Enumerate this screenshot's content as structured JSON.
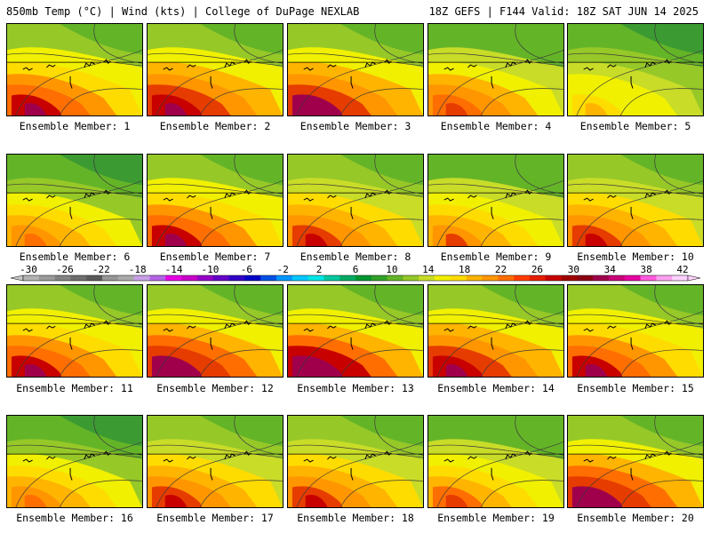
{
  "header": {
    "left": "850mb Temp (°C) | Wind (kts) | College of DuPage NEXLAB",
    "right": "18Z GEFS | F144 Valid: 18Z SAT JUN 14 2025"
  },
  "members": [
    {
      "label": "Ensemble Member: 1",
      "warmth": 0.8
    },
    {
      "label": "Ensemble Member: 2",
      "warmth": 0.82
    },
    {
      "label": "Ensemble Member: 3",
      "warmth": 0.85
    },
    {
      "label": "Ensemble Member: 4",
      "warmth": 0.65
    },
    {
      "label": "Ensemble Member: 5",
      "warmth": 0.45
    },
    {
      "label": "Ensemble Member: 6",
      "warmth": 0.55
    },
    {
      "label": "Ensemble Member: 7",
      "warmth": 0.78
    },
    {
      "label": "Ensemble Member: 8",
      "warmth": 0.7
    },
    {
      "label": "Ensemble Member: 9",
      "warmth": 0.6
    },
    {
      "label": "Ensemble Member: 10",
      "warmth": 0.72
    },
    {
      "label": "Ensemble Member: 11",
      "warmth": 0.78
    },
    {
      "label": "Ensemble Member: 12",
      "warmth": 0.88
    },
    {
      "label": "Ensemble Member: 13",
      "warmth": 0.92
    },
    {
      "label": "Ensemble Member: 14",
      "warmth": 0.84
    },
    {
      "label": "Ensemble Member: 15",
      "warmth": 0.8
    },
    {
      "label": "Ensemble Member: 16",
      "warmth": 0.55
    },
    {
      "label": "Ensemble Member: 17",
      "warmth": 0.7
    },
    {
      "label": "Ensemble Member: 18",
      "warmth": 0.72
    },
    {
      "label": "Ensemble Member: 19",
      "warmth": 0.62
    },
    {
      "label": "Ensemble Member: 20",
      "warmth": 0.9
    }
  ],
  "colorbar": {
    "ticks": [
      "-30",
      "-26",
      "-22",
      "-18",
      "-14",
      "-10",
      "-6",
      "-2",
      "2",
      "6",
      "10",
      "14",
      "18",
      "22",
      "26",
      "30",
      "34",
      "38",
      "42"
    ],
    "colors": [
      "#b4b4b4",
      "#9b9b9b",
      "#828282",
      "#6e6e6e",
      "#5a5a5a",
      "#969696",
      "#aaaaaa",
      "#c8a0e6",
      "#b464e6",
      "#e600e6",
      "#c800c8",
      "#9600c8",
      "#6400c8",
      "#3200c8",
      "#0000c8",
      "#0050e6",
      "#0096ff",
      "#00c8ff",
      "#00e6e6",
      "#00c8a0",
      "#00aa64",
      "#009632",
      "#32a028",
      "#64b428",
      "#96c828",
      "#c8dc28",
      "#f0f000",
      "#ffdc00",
      "#ffb400",
      "#ff9600",
      "#ff6e00",
      "#ff3c00",
      "#e61e00",
      "#c80000",
      "#a00000",
      "#8c0014",
      "#a0004b",
      "#c80078",
      "#e600a0",
      "#ff5adc",
      "#ffa0f0",
      "#ffd2ff"
    ]
  }
}
